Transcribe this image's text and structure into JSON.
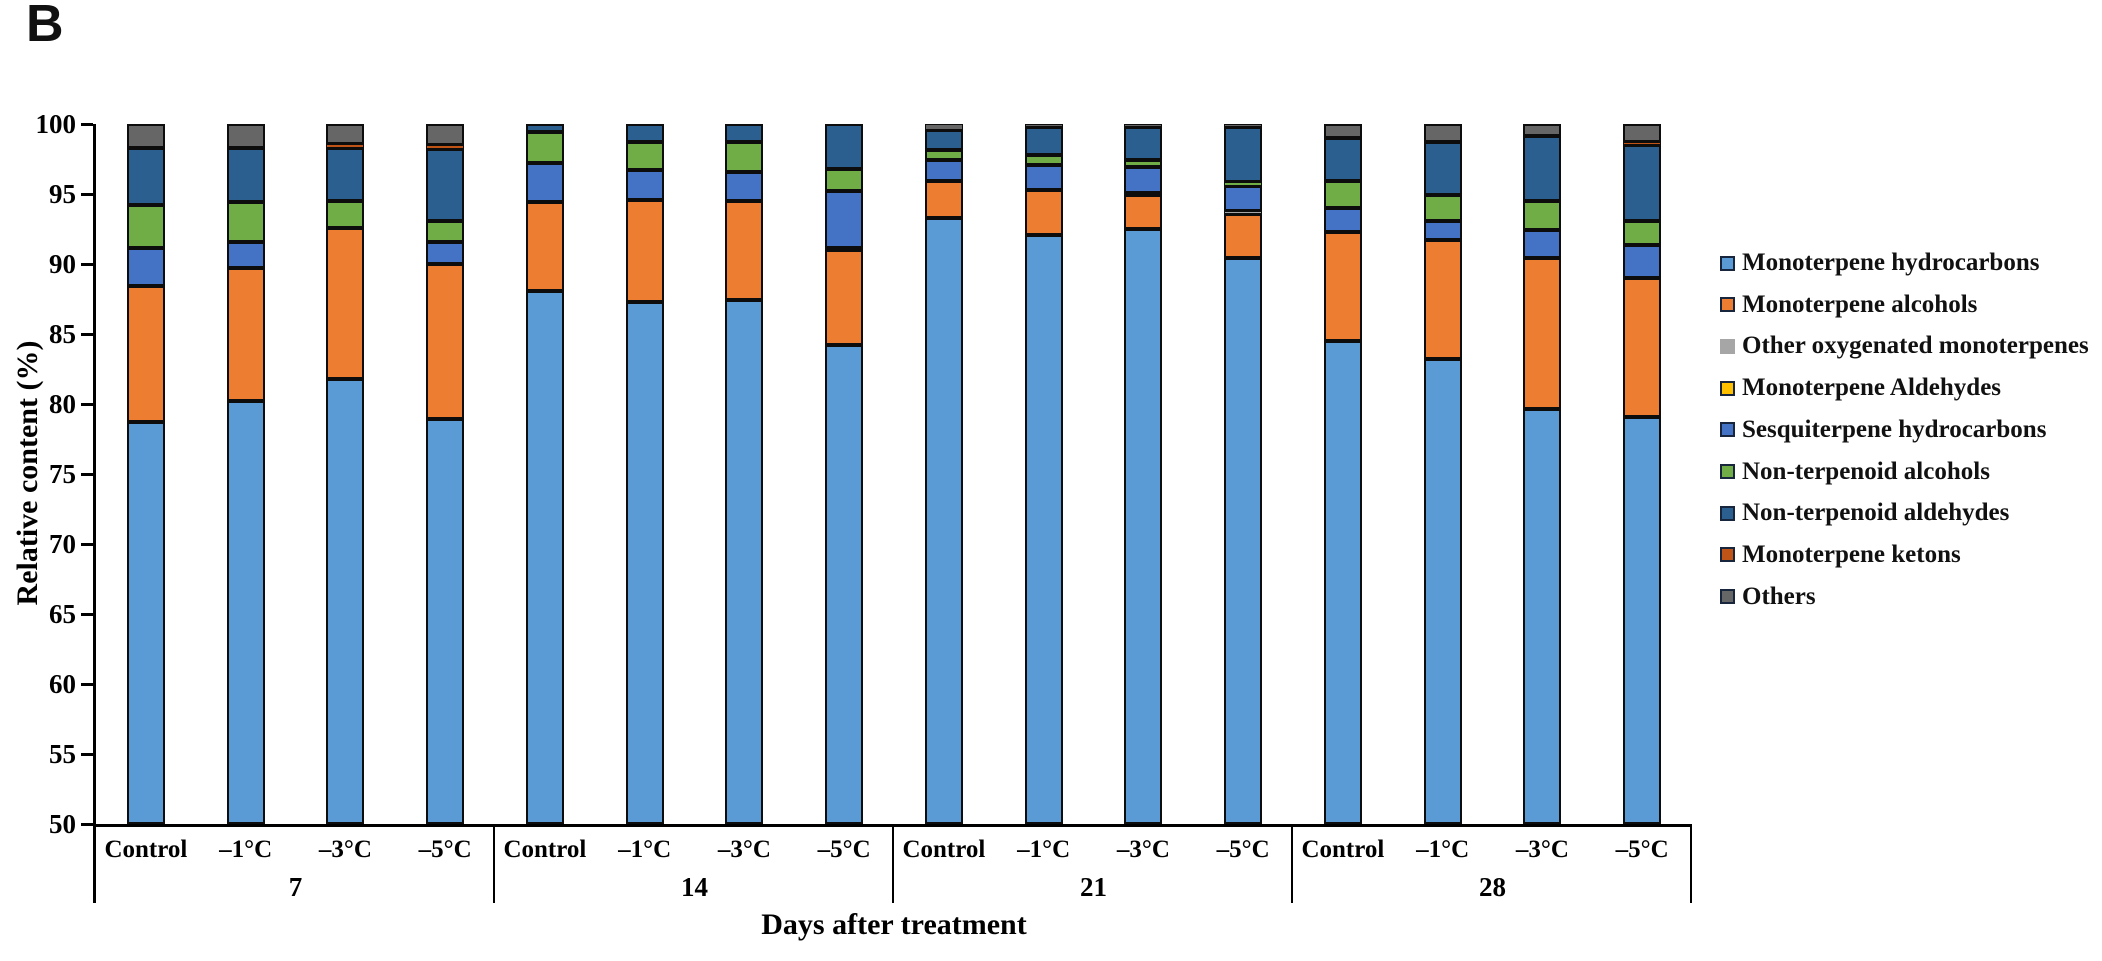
{
  "panel_label": "B",
  "chart_data": {
    "type": "stacked-bar",
    "title": "",
    "xlabel": "Days after treatment",
    "ylabel": "Relative content (%)",
    "ylim": [
      50,
      100
    ],
    "yticks": [
      50,
      55,
      60,
      65,
      70,
      75,
      80,
      85,
      90,
      95,
      100
    ],
    "grid": false,
    "legend_position": "right",
    "series_order": [
      {
        "name": "Monoterpene hydrocarbons",
        "color": "#5B9BD5"
      },
      {
        "name": "Monoterpene alcohols",
        "color": "#ED7D31"
      },
      {
        "name": "Other oxygenated monoterpenes",
        "color": "#A6A6A6"
      },
      {
        "name": "Monoterpene Aldehydes",
        "color": "#FFC000"
      },
      {
        "name": "Sesquiterpene hydrocarbons",
        "color": "#4472C4"
      },
      {
        "name": "Non-terpenoid alcohols",
        "color": "#70AD47"
      },
      {
        "name": "Non-terpenoid aldehydes",
        "color": "#2A5F8F"
      },
      {
        "name": "Monoterpene ketons",
        "color": "#C05316"
      },
      {
        "name": "Others",
        "color": "#666666"
      }
    ],
    "note": "cumulative_tops are running totals (%) bottom-to-top in series_order; baseline is 50",
    "groups": [
      {
        "label": "7",
        "bars": [
          {
            "label": "Control",
            "cumulative_tops": [
              78.7,
              88.4,
              88.4,
              88.4,
              91.15,
              94.2,
              98.3,
              98.3,
              100
            ]
          },
          {
            "label": "–1°C",
            "cumulative_tops": [
              80.2,
              89.7,
              89.7,
              89.7,
              91.6,
              94.4,
              98.3,
              98.3,
              100
            ]
          },
          {
            "label": "–3°C",
            "cumulative_tops": [
              81.8,
              92.55,
              92.55,
              92.55,
              92.55,
              94.5,
              98.3,
              98.6,
              100
            ]
          },
          {
            "label": "–5°C",
            "cumulative_tops": [
              78.9,
              90.0,
              90.0,
              90.0,
              91.6,
              93.1,
              98.2,
              98.5,
              100
            ]
          }
        ]
      },
      {
        "label": "14",
        "bars": [
          {
            "label": "Control",
            "cumulative_tops": [
              88.1,
              94.45,
              94.45,
              94.45,
              97.2,
              99.4,
              100,
              100,
              100
            ]
          },
          {
            "label": "–1°C",
            "cumulative_tops": [
              87.3,
              94.6,
              94.6,
              94.6,
              96.7,
              98.7,
              100,
              100,
              100
            ]
          },
          {
            "label": "–3°C",
            "cumulative_tops": [
              87.4,
              94.5,
              94.5,
              94.5,
              96.6,
              98.7,
              100,
              100,
              100
            ]
          },
          {
            "label": "–5°C",
            "cumulative_tops": [
              84.2,
              91.0,
              91.15,
              91.15,
              95.2,
              96.8,
              100,
              100,
              100
            ]
          }
        ]
      },
      {
        "label": "21",
        "bars": [
          {
            "label": "Control",
            "cumulative_tops": [
              93.3,
              95.9,
              95.9,
              95.9,
              97.45,
              98.15,
              99.6,
              99.6,
              100
            ]
          },
          {
            "label": "–1°C",
            "cumulative_tops": [
              92.1,
              95.3,
              95.3,
              95.3,
              97.1,
              97.8,
              99.8,
              99.8,
              100
            ]
          },
          {
            "label": "–3°C",
            "cumulative_tops": [
              92.5,
              94.9,
              95.1,
              95.1,
              96.95,
              97.4,
              99.8,
              99.8,
              100
            ]
          },
          {
            "label": "–5°C",
            "cumulative_tops": [
              90.4,
              93.6,
              93.8,
              93.8,
              95.55,
              95.85,
              99.8,
              99.8,
              100
            ]
          }
        ]
      },
      {
        "label": "28",
        "bars": [
          {
            "label": "Control",
            "cumulative_tops": [
              84.5,
              92.3,
              92.3,
              92.3,
              94.0,
              95.9,
              99.0,
              99.0,
              100
            ]
          },
          {
            "label": "–1°C",
            "cumulative_tops": [
              83.2,
              91.7,
              91.7,
              91.7,
              93.05,
              94.9,
              98.7,
              98.7,
              100
            ]
          },
          {
            "label": "–3°C",
            "cumulative_tops": [
              79.65,
              90.4,
              90.4,
              90.4,
              92.4,
              94.5,
              99.15,
              99.15,
              100
            ]
          },
          {
            "label": "–5°C",
            "cumulative_tops": [
              79.05,
              89.0,
              89.0,
              89.0,
              91.35,
              93.1,
              98.5,
              98.7,
              100
            ]
          }
        ]
      }
    ]
  },
  "layout_colors": {
    "axis": "#000000",
    "background": "#ffffff"
  }
}
